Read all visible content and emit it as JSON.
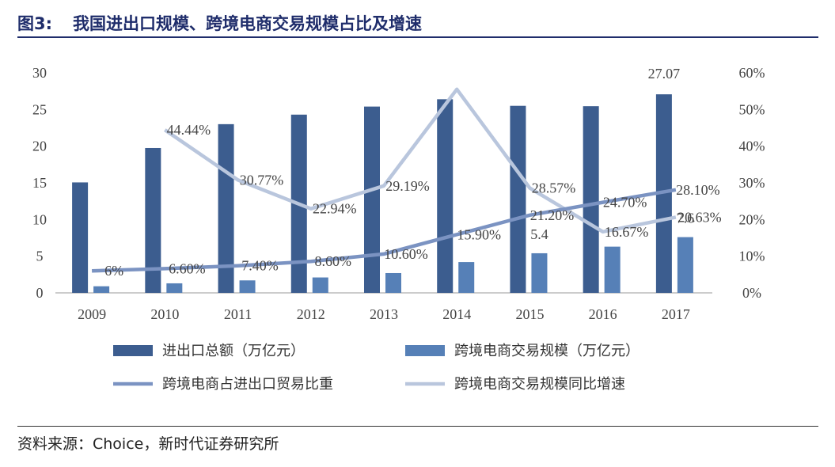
{
  "header": {
    "fig_num": "图3:",
    "title": "我国进出口规模、跨境电商交易规模占比及增速"
  },
  "source": "资料来源：Choice，新时代证券研究所",
  "colors": {
    "total": "#3c5d8f",
    "cross": "#5680b7",
    "share_line": "#7b93c2",
    "growth_line": "#b9c6dd",
    "title": "#1f2d6b"
  },
  "chart_data": {
    "type": "bar",
    "categories": [
      "2009",
      "2010",
      "2011",
      "2012",
      "2013",
      "2014",
      "2015",
      "2016",
      "2017"
    ],
    "series": [
      {
        "name": "进出口总额（万亿元）",
        "type": "bar",
        "axis": "left",
        "values": [
          15.06,
          19.75,
          23.0,
          24.3,
          25.4,
          26.4,
          25.5,
          25.45,
          27.07
        ],
        "labels": [
          "",
          "",
          "",
          "",
          "",
          "",
          "",
          "",
          "27.07"
        ]
      },
      {
        "name": "跨境电商交易规模（万亿元）",
        "type": "bar",
        "axis": "left",
        "values": [
          0.9,
          1.3,
          1.7,
          2.1,
          2.7,
          4.2,
          5.4,
          6.3,
          7.6
        ],
        "labels": [
          "",
          "",
          "",
          "",
          "",
          "",
          "5.4",
          "",
          "7.6"
        ]
      },
      {
        "name": "跨境电商占进出口贸易比重",
        "type": "line",
        "axis": "right",
        "values": [
          6,
          6.6,
          7.4,
          8.6,
          10.6,
          15.9,
          21.2,
          24.7,
          28.1
        ],
        "labels": [
          "6%",
          "6.60%",
          "7.40%",
          "8.60%",
          "10.60%",
          "15.90%",
          "21.20%",
          "24.70%",
          "28.10%"
        ]
      },
      {
        "name": "跨境电商交易规模同比增速",
        "type": "line",
        "axis": "right",
        "values": [
          null,
          44.44,
          30.77,
          22.94,
          29.19,
          55.5,
          28.57,
          16.67,
          20.63
        ],
        "labels": [
          "",
          "44.44%",
          "30.77%",
          "22.94%",
          "29.19%",
          "",
          "28.57%",
          "16.67%",
          "20.63%"
        ]
      }
    ],
    "y_left": {
      "ticks": [
        "0",
        "5",
        "10",
        "15",
        "20",
        "25",
        "30"
      ],
      "range": [
        0,
        30
      ]
    },
    "y_right": {
      "ticks": [
        "0%",
        "10%",
        "20%",
        "30%",
        "40%",
        "50%",
        "60%"
      ],
      "range": [
        0,
        60
      ]
    },
    "grid": false,
    "legend_position": "bottom"
  }
}
